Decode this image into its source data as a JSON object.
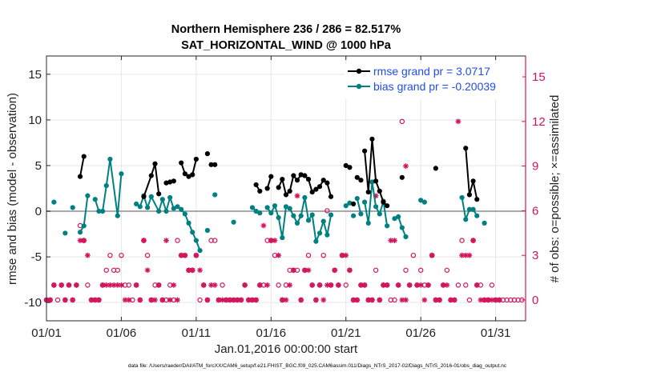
{
  "chart_data": {
    "type": "line",
    "title_line1": "Northern Hemisphere 236 / 286 = 82.517%",
    "title_line2": "SAT_HORIZONTAL_WIND @ 1000 hPa",
    "xlabel": "Jan.01,2016 00:00:00 start",
    "ylabel_left": "rmse and bias (model - observation)",
    "ylabel_right": "# of obs: o=possible; ×=assimilated",
    "xlim": [
      0,
      32
    ],
    "ylim_left": [
      -12,
      17
    ],
    "ylim_right": [
      -1.4,
      16.4
    ],
    "x_ticks": [
      0,
      5,
      10,
      15,
      20,
      25,
      30
    ],
    "x_tick_labels": [
      "01/01",
      "01/06",
      "01/11",
      "01/16",
      "01/21",
      "01/26",
      "01/31"
    ],
    "y_ticks_left": [
      -10,
      -5,
      0,
      5,
      10,
      15
    ],
    "y_tick_labels_left": [
      "-10",
      "-5",
      "0",
      "5",
      "10",
      "15"
    ],
    "y_ticks_right": [
      0,
      3,
      6,
      9,
      12,
      15
    ],
    "y_tick_labels_right": [
      "0",
      "3",
      "6",
      "9",
      "12",
      "15"
    ],
    "zero_line": 0,
    "legend": [
      {
        "name": "rmse grand pr = 3.0717",
        "color": "#000000"
      },
      {
        "name": "bias grand pr = -0.20039",
        "color": "#008080"
      }
    ],
    "rmse_segments": [
      [
        [
          2.25,
          3.8
        ],
        [
          2.5,
          6.0
        ]
      ],
      [
        [
          6.5,
          1.6
        ],
        [
          7.0,
          3.9
        ],
        [
          7.25,
          5.2
        ],
        [
          7.5,
          1.9
        ]
      ],
      [
        [
          8.0,
          3.1
        ],
        [
          8.25,
          3.2
        ],
        [
          8.5,
          3.3
        ]
      ],
      [
        [
          9.0,
          5.3
        ],
        [
          9.25,
          4.1
        ],
        [
          9.5,
          3.8
        ],
        [
          9.75,
          4.0
        ],
        [
          10.0,
          5.7
        ]
      ],
      [
        [
          10.75,
          6.3
        ]
      ],
      [
        [
          11.0,
          5.1
        ],
        [
          11.25,
          5.1
        ]
      ],
      [
        [
          14.0,
          2.9
        ],
        [
          14.25,
          2.2
        ]
      ],
      [
        [
          14.75,
          2.5
        ],
        [
          15.0,
          3.8
        ]
      ],
      [
        [
          15.5,
          2.6
        ],
        [
          15.75,
          3.5
        ],
        [
          16.0,
          1.8
        ],
        [
          16.25,
          2.2
        ],
        [
          16.5,
          3.9
        ],
        [
          16.75,
          3.4
        ],
        [
          17.0,
          4.0
        ],
        [
          17.25,
          3.9
        ],
        [
          17.5,
          3.5
        ],
        [
          17.75,
          2.1
        ],
        [
          18.0,
          2.4
        ],
        [
          18.25,
          2.7
        ],
        [
          18.5,
          3.4
        ],
        [
          18.75,
          3.1
        ],
        [
          19.0,
          1.6
        ]
      ],
      [
        [
          20.0,
          5.0
        ],
        [
          20.25,
          4.8
        ]
      ],
      [
        [
          20.5,
          0.8
        ]
      ],
      [
        [
          20.75,
          3.7
        ],
        [
          21.0,
          3.4
        ]
      ],
      [
        [
          21.25,
          6.6
        ],
        [
          21.5,
          2.1
        ],
        [
          21.75,
          7.9
        ],
        [
          22.0,
          3.3
        ],
        [
          22.25,
          2.2
        ],
        [
          22.5,
          1.0
        ],
        [
          22.75,
          0.6
        ]
      ],
      [
        [
          23.75,
          3.7
        ]
      ],
      [
        [
          26.0,
          4.7
        ]
      ],
      [
        [
          28.0,
          6.9
        ],
        [
          28.25,
          1.8
        ],
        [
          28.5,
          3.3
        ],
        [
          28.75,
          1.3
        ]
      ]
    ],
    "bias_segments": [
      [
        [
          0.5,
          1.0
        ]
      ],
      [
        [
          1.25,
          -2.4
        ]
      ],
      [
        [
          1.75,
          0.4
        ]
      ],
      [
        [
          2.25,
          -2.3
        ],
        [
          2.5,
          -1.6
        ],
        [
          2.75,
          1.7
        ]
      ],
      [
        [
          3.25,
          1.3
        ],
        [
          3.5,
          0.0
        ],
        [
          3.75,
          0.0
        ],
        [
          4.0,
          2.8
        ],
        [
          4.25,
          5.7
        ],
        [
          4.75,
          -0.5
        ],
        [
          5.0,
          4.1
        ]
      ],
      [
        [
          6.0,
          0.8
        ],
        [
          6.25,
          0.5
        ],
        [
          6.5,
          1.7
        ],
        [
          6.75,
          0.4
        ],
        [
          7.0,
          1.6
        ],
        [
          7.5,
          0.0
        ],
        [
          7.75,
          1.3
        ],
        [
          8.0,
          0.0
        ],
        [
          8.25,
          1.5
        ],
        [
          8.5,
          0.3
        ],
        [
          8.75,
          0.5
        ],
        [
          9.0,
          0.2
        ],
        [
          9.25,
          -0.3
        ],
        [
          9.5,
          -1.3
        ],
        [
          9.75,
          -2.3
        ],
        [
          10.0,
          -3.2
        ],
        [
          10.25,
          -4.3
        ]
      ],
      [
        [
          10.75,
          -2.1
        ]
      ],
      [
        [
          11.25,
          1.8
        ]
      ],
      [
        [
          12.5,
          -1.2
        ]
      ],
      [
        [
          13.75,
          0.4
        ],
        [
          14.0,
          0.0
        ],
        [
          14.25,
          -0.2
        ]
      ],
      [
        [
          14.75,
          0.4
        ],
        [
          15.0,
          -0.2
        ],
        [
          15.25,
          0.6
        ],
        [
          15.5,
          -0.7
        ],
        [
          15.75,
          -2.9
        ],
        [
          16.0,
          0.5
        ],
        [
          16.25,
          0.3
        ],
        [
          16.5,
          -0.5
        ],
        [
          16.75,
          -1.3
        ],
        [
          17.0,
          -0.5
        ],
        [
          17.25,
          1.5
        ],
        [
          17.5,
          -1.0
        ],
        [
          17.75,
          -0.4
        ],
        [
          18.0,
          -3.3
        ],
        [
          18.25,
          -2.4
        ],
        [
          18.5,
          -1.1
        ],
        [
          18.75,
          -2.6
        ],
        [
          19.0,
          -0.4
        ]
      ],
      [
        [
          20.0,
          0.6
        ],
        [
          20.25,
          0.9
        ]
      ],
      [
        [
          20.5,
          -0.5
        ]
      ],
      [
        [
          20.75,
          1.4
        ],
        [
          21.0,
          -0.3
        ]
      ],
      [
        [
          21.25,
          1.0
        ],
        [
          21.5,
          -1.3
        ],
        [
          21.75,
          3.2
        ],
        [
          22.0,
          0.5
        ],
        [
          22.25,
          -0.3
        ],
        [
          22.5,
          1.1
        ],
        [
          22.75,
          -1.6
        ]
      ],
      [
        [
          23.25,
          -0.8
        ],
        [
          23.5,
          -0.6
        ],
        [
          23.75,
          -1.8
        ],
        [
          24.0,
          -2.8
        ]
      ],
      [
        [
          25.0,
          1.2
        ],
        [
          25.25,
          1.0
        ]
      ],
      [
        [
          27.75,
          1.5
        ],
        [
          28.0,
          -0.9
        ],
        [
          28.25,
          0.2
        ],
        [
          28.5,
          0.2
        ],
        [
          28.75,
          -0.5
        ]
      ],
      [
        [
          29.25,
          -1.3
        ]
      ]
    ],
    "obs_possible": [
      [
        0,
        0
      ],
      [
        0.25,
        0
      ],
      [
        0.5,
        1
      ],
      [
        0.75,
        0
      ],
      [
        1,
        1
      ],
      [
        1.25,
        0
      ],
      [
        1.5,
        1
      ],
      [
        1.75,
        0
      ],
      [
        2,
        1
      ],
      [
        2.25,
        5
      ],
      [
        2.5,
        4
      ],
      [
        2.75,
        1
      ],
      [
        3,
        0
      ],
      [
        3.25,
        0
      ],
      [
        3.5,
        0
      ],
      [
        3.75,
        1
      ],
      [
        4,
        2
      ],
      [
        4.25,
        3
      ],
      [
        4.5,
        2
      ],
      [
        4.75,
        2
      ],
      [
        5,
        3
      ],
      [
        5.25,
        1
      ],
      [
        5.5,
        1
      ],
      [
        5.75,
        0
      ],
      [
        6,
        1
      ],
      [
        6.25,
        0
      ],
      [
        6.5,
        4
      ],
      [
        6.75,
        3
      ],
      [
        7,
        0
      ],
      [
        7.25,
        1
      ],
      [
        7.5,
        1
      ],
      [
        7.75,
        0
      ],
      [
        8,
        0
      ],
      [
        8.25,
        1
      ],
      [
        8.5,
        0
      ],
      [
        8.75,
        4
      ],
      [
        9,
        3
      ],
      [
        9.25,
        3
      ],
      [
        9.5,
        2
      ],
      [
        9.75,
        2
      ],
      [
        10,
        3
      ],
      [
        10.25,
        0
      ],
      [
        10.5,
        1
      ],
      [
        10.75,
        0
      ],
      [
        11,
        4
      ],
      [
        11.25,
        4
      ],
      [
        11.5,
        0
      ],
      [
        11.75,
        1
      ],
      [
        12,
        0
      ],
      [
        12.25,
        0
      ],
      [
        12.5,
        0
      ],
      [
        12.75,
        0
      ],
      [
        13,
        0
      ],
      [
        13.25,
        1
      ],
      [
        13.5,
        0
      ],
      [
        13.75,
        0
      ],
      [
        14,
        0
      ],
      [
        14.25,
        1
      ],
      [
        14.5,
        1
      ],
      [
        14.75,
        4
      ],
      [
        15,
        4
      ],
      [
        15.25,
        3
      ],
      [
        15.5,
        1
      ],
      [
        15.75,
        0
      ],
      [
        16,
        1
      ],
      [
        16.25,
        2
      ],
      [
        16.5,
        2
      ],
      [
        16.75,
        2
      ],
      [
        17,
        0
      ],
      [
        17.25,
        2
      ],
      [
        17.5,
        3
      ],
      [
        17.75,
        1
      ],
      [
        18,
        0
      ],
      [
        18.25,
        1
      ],
      [
        18.5,
        3
      ],
      [
        18.75,
        6
      ],
      [
        19,
        1
      ],
      [
        19.25,
        2
      ],
      [
        19.5,
        1
      ],
      [
        19.75,
        3
      ],
      [
        20,
        1
      ],
      [
        20.25,
        2
      ],
      [
        20.5,
        0
      ],
      [
        20.75,
        0
      ],
      [
        21,
        1
      ],
      [
        21.25,
        1
      ],
      [
        21.5,
        0
      ],
      [
        21.75,
        0
      ],
      [
        22,
        2
      ],
      [
        22.25,
        0
      ],
      [
        22.5,
        1
      ],
      [
        22.75,
        1
      ],
      [
        23,
        0
      ],
      [
        23.25,
        0
      ],
      [
        23.5,
        1
      ],
      [
        23.75,
        12
      ],
      [
        24,
        2
      ],
      [
        24.25,
        1
      ],
      [
        24.5,
        3
      ],
      [
        24.75,
        1
      ],
      [
        25,
        2
      ],
      [
        25.25,
        1
      ],
      [
        25.5,
        1
      ],
      [
        25.75,
        3
      ],
      [
        26,
        0
      ],
      [
        26.25,
        0
      ],
      [
        26.5,
        1
      ],
      [
        26.75,
        2
      ],
      [
        27,
        0
      ],
      [
        27.25,
        0
      ],
      [
        27.5,
        1
      ],
      [
        27.75,
        4
      ],
      [
        28,
        1
      ],
      [
        28.25,
        0
      ],
      [
        28.5,
        4
      ],
      [
        28.75,
        1
      ],
      [
        29,
        1
      ],
      [
        29.25,
        0
      ],
      [
        29.5,
        0
      ],
      [
        29.75,
        1
      ],
      [
        30,
        0
      ],
      [
        30.25,
        0
      ],
      [
        30.5,
        0
      ],
      [
        30.75,
        0
      ],
      [
        31,
        0
      ],
      [
        31.25,
        0
      ],
      [
        31.5,
        0
      ],
      [
        31.75,
        0
      ]
    ],
    "obs_assimilated": [
      [
        0,
        0
      ],
      [
        0.25,
        0
      ],
      [
        0.5,
        1
      ],
      [
        1,
        1
      ],
      [
        1.25,
        0
      ],
      [
        1.5,
        1
      ],
      [
        1.75,
        0
      ],
      [
        2,
        1
      ],
      [
        2.25,
        4
      ],
      [
        2.5,
        4
      ],
      [
        2.75,
        3
      ],
      [
        3,
        0
      ],
      [
        3.25,
        0
      ],
      [
        3.5,
        0
      ],
      [
        3.75,
        1
      ],
      [
        4,
        1
      ],
      [
        4.25,
        1
      ],
      [
        4.5,
        1
      ],
      [
        4.75,
        1
      ],
      [
        5,
        1
      ],
      [
        5.25,
        0
      ],
      [
        5.5,
        0
      ],
      [
        6,
        1
      ],
      [
        6.25,
        0
      ],
      [
        6.5,
        4
      ],
      [
        6.75,
        2
      ],
      [
        7,
        0
      ],
      [
        7.25,
        0
      ],
      [
        7.5,
        1
      ],
      [
        7.75,
        0
      ],
      [
        8,
        4
      ],
      [
        8.25,
        0
      ],
      [
        8.5,
        1
      ],
      [
        8.75,
        0
      ],
      [
        9,
        3
      ],
      [
        9.25,
        3
      ],
      [
        9.5,
        2
      ],
      [
        9.75,
        2
      ],
      [
        10,
        3
      ],
      [
        10.25,
        2
      ],
      [
        10.5,
        1
      ],
      [
        10.75,
        0
      ],
      [
        11,
        1
      ],
      [
        11.25,
        1
      ],
      [
        11.5,
        0
      ],
      [
        11.75,
        0
      ],
      [
        12,
        0
      ],
      [
        12.25,
        0
      ],
      [
        12.5,
        0
      ],
      [
        12.75,
        0
      ],
      [
        13,
        0
      ],
      [
        13.25,
        1
      ],
      [
        13.5,
        0
      ],
      [
        13.75,
        0
      ],
      [
        14,
        0
      ],
      [
        14.25,
        1
      ],
      [
        14.5,
        5
      ],
      [
        14.75,
        1
      ],
      [
        15,
        4
      ],
      [
        15.25,
        4
      ],
      [
        15.5,
        3
      ],
      [
        15.75,
        0
      ],
      [
        16,
        0
      ],
      [
        16.25,
        1
      ],
      [
        16.5,
        2
      ],
      [
        16.75,
        7
      ],
      [
        17,
        0
      ],
      [
        17.25,
        2
      ],
      [
        17.5,
        2
      ],
      [
        17.75,
        1
      ],
      [
        18,
        0
      ],
      [
        18.25,
        1
      ],
      [
        18.5,
        0
      ],
      [
        18.75,
        1
      ],
      [
        19,
        1
      ],
      [
        19.25,
        2
      ],
      [
        19.5,
        1
      ],
      [
        19.75,
        3
      ],
      [
        20,
        3
      ],
      [
        20.25,
        2
      ],
      [
        20.5,
        0
      ],
      [
        20.75,
        0
      ],
      [
        21,
        1
      ],
      [
        21.25,
        1
      ],
      [
        21.5,
        0
      ],
      [
        21.75,
        0
      ],
      [
        22,
        7
      ],
      [
        22.25,
        0
      ],
      [
        22.5,
        1
      ],
      [
        22.75,
        1
      ],
      [
        23,
        4
      ],
      [
        23.25,
        4
      ],
      [
        23.5,
        1
      ],
      [
        23.75,
        0
      ],
      [
        24,
        0
      ],
      [
        24,
        9
      ],
      [
        24.25,
        1
      ],
      [
        24.75,
        1
      ],
      [
        25,
        1
      ],
      [
        25.25,
        0
      ],
      [
        25.5,
        1
      ],
      [
        25.75,
        3
      ],
      [
        26,
        0
      ],
      [
        26.25,
        0
      ],
      [
        26.5,
        1
      ],
      [
        26.75,
        1
      ],
      [
        27,
        0
      ],
      [
        27.25,
        0
      ],
      [
        27.5,
        12
      ],
      [
        27.75,
        3
      ],
      [
        28,
        3
      ],
      [
        28.25,
        3
      ],
      [
        28.5,
        4
      ],
      [
        28.75,
        1
      ],
      [
        29,
        0
      ],
      [
        29.25,
        0
      ],
      [
        29.5,
        0
      ],
      [
        29.75,
        0
      ],
      [
        30,
        0
      ],
      [
        30.25,
        0
      ]
    ],
    "colors": {
      "rmse": "#000000",
      "bias": "#008080",
      "obs": "#d1145a",
      "zero_line": "#a9a9a9",
      "grid": "#e6e6e6",
      "right_axis": "#d1145a"
    }
  },
  "footnote": "data file: /Users/raeder/DAI/ATM_forcXX/CAM6_setup/f.e21.FHIST_BGC.f09_025.CAM6assim.011/Diags_NTrS_2017-02/Diags_NTrS_2016-01/obs_diag_output.nc"
}
